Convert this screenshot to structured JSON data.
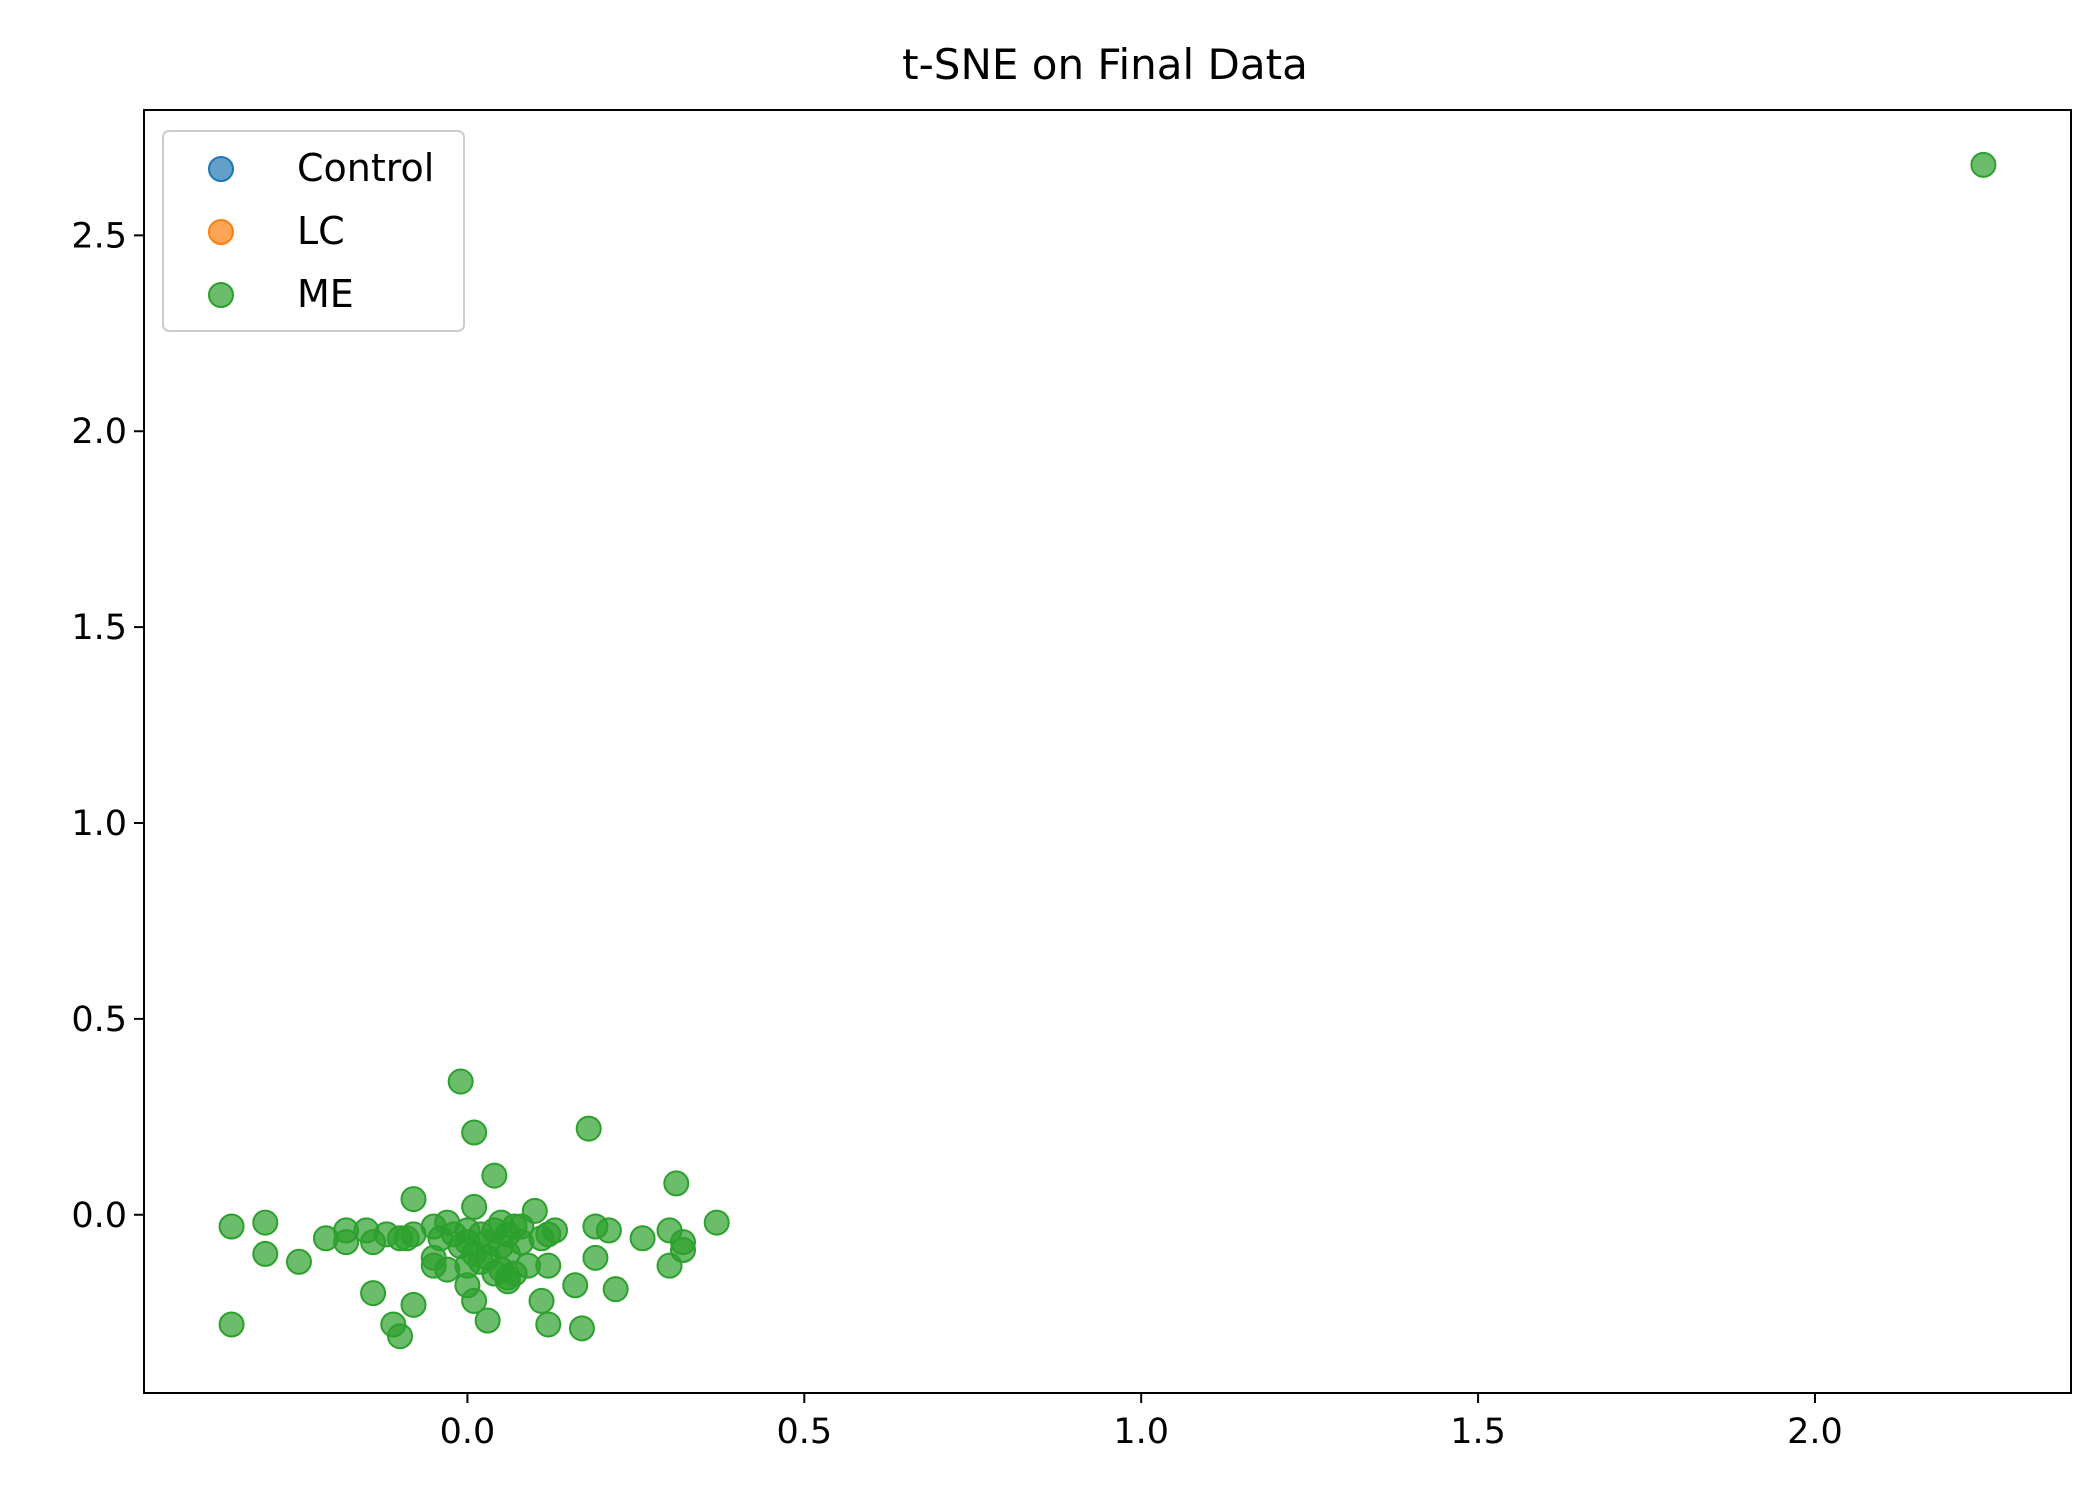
{
  "chart_data": {
    "type": "scatter",
    "title": "t-SNE on Final Data",
    "xlabel": "",
    "ylabel": "",
    "xlim": [
      -0.48,
      2.38
    ],
    "ylim": [
      -0.455,
      2.82
    ],
    "xticks": [
      0.0,
      0.5,
      1.0,
      1.5,
      2.0
    ],
    "xtick_labels": [
      "0.0",
      "0.5",
      "1.0",
      "1.5",
      "2.0"
    ],
    "yticks": [
      0.0,
      0.5,
      1.0,
      1.5,
      2.0,
      2.5
    ],
    "ytick_labels": [
      "0.0",
      "0.5",
      "1.0",
      "1.5",
      "2.0",
      "2.5"
    ],
    "grid": false,
    "legend_position": "top-left",
    "series": [
      {
        "name": "Control",
        "color": "#1f77b4",
        "points": []
      },
      {
        "name": "LC",
        "color": "#ff7f0e",
        "points": []
      },
      {
        "name": "ME",
        "color": "#2ca02c",
        "points": [
          [
            2.25,
            2.68
          ],
          [
            -0.01,
            0.34
          ],
          [
            0.01,
            0.21
          ],
          [
            0.18,
            0.22
          ],
          [
            0.04,
            0.1
          ],
          [
            0.31,
            0.08
          ],
          [
            -0.08,
            0.04
          ],
          [
            0.01,
            0.02
          ],
          [
            0.1,
            0.01
          ],
          [
            0.37,
            -0.02
          ],
          [
            -0.35,
            -0.03
          ],
          [
            -0.3,
            -0.02
          ],
          [
            -0.21,
            -0.06
          ],
          [
            -0.18,
            -0.04
          ],
          [
            -0.18,
            -0.07
          ],
          [
            -0.15,
            -0.04
          ],
          [
            -0.14,
            -0.07
          ],
          [
            -0.12,
            -0.05
          ],
          [
            -0.1,
            -0.06
          ],
          [
            -0.09,
            -0.06
          ],
          [
            -0.08,
            -0.05
          ],
          [
            -0.05,
            -0.03
          ],
          [
            -0.04,
            -0.06
          ],
          [
            -0.03,
            -0.02
          ],
          [
            -0.02,
            -0.05
          ],
          [
            -0.01,
            -0.08
          ],
          [
            0.0,
            -0.04
          ],
          [
            0.0,
            -0.07
          ],
          [
            0.01,
            -0.1
          ],
          [
            0.02,
            -0.05
          ],
          [
            0.03,
            -0.07
          ],
          [
            0.03,
            -0.11
          ],
          [
            0.04,
            -0.04
          ],
          [
            0.05,
            -0.02
          ],
          [
            0.05,
            -0.08
          ],
          [
            0.06,
            -0.05
          ],
          [
            0.06,
            -0.1
          ],
          [
            0.07,
            -0.03
          ],
          [
            0.08,
            -0.03
          ],
          [
            0.08,
            -0.07
          ],
          [
            0.09,
            -0.13
          ],
          [
            0.11,
            -0.06
          ],
          [
            0.12,
            -0.05
          ],
          [
            0.13,
            -0.04
          ],
          [
            0.19,
            -0.03
          ],
          [
            0.21,
            -0.04
          ],
          [
            0.26,
            -0.06
          ],
          [
            0.3,
            -0.04
          ],
          [
            0.32,
            -0.07
          ],
          [
            0.32,
            -0.09
          ],
          [
            -0.3,
            -0.1
          ],
          [
            -0.25,
            -0.12
          ],
          [
            -0.05,
            -0.11
          ],
          [
            -0.05,
            -0.13
          ],
          [
            -0.03,
            -0.14
          ],
          [
            0.0,
            -0.13
          ],
          [
            0.02,
            -0.12
          ],
          [
            0.04,
            -0.15
          ],
          [
            0.05,
            -0.14
          ],
          [
            0.06,
            -0.16
          ],
          [
            0.07,
            -0.15
          ],
          [
            0.12,
            -0.13
          ],
          [
            0.19,
            -0.11
          ],
          [
            0.3,
            -0.13
          ],
          [
            0.0,
            -0.18
          ],
          [
            0.06,
            -0.17
          ],
          [
            0.16,
            -0.18
          ],
          [
            0.22,
            -0.19
          ],
          [
            -0.14,
            -0.2
          ],
          [
            -0.08,
            -0.23
          ],
          [
            0.01,
            -0.22
          ],
          [
            0.11,
            -0.22
          ],
          [
            -0.11,
            -0.28
          ],
          [
            0.03,
            -0.27
          ],
          [
            0.12,
            -0.28
          ],
          [
            -0.35,
            -0.28
          ],
          [
            0.17,
            -0.29
          ],
          [
            -0.1,
            -0.31
          ]
        ]
      }
    ]
  }
}
